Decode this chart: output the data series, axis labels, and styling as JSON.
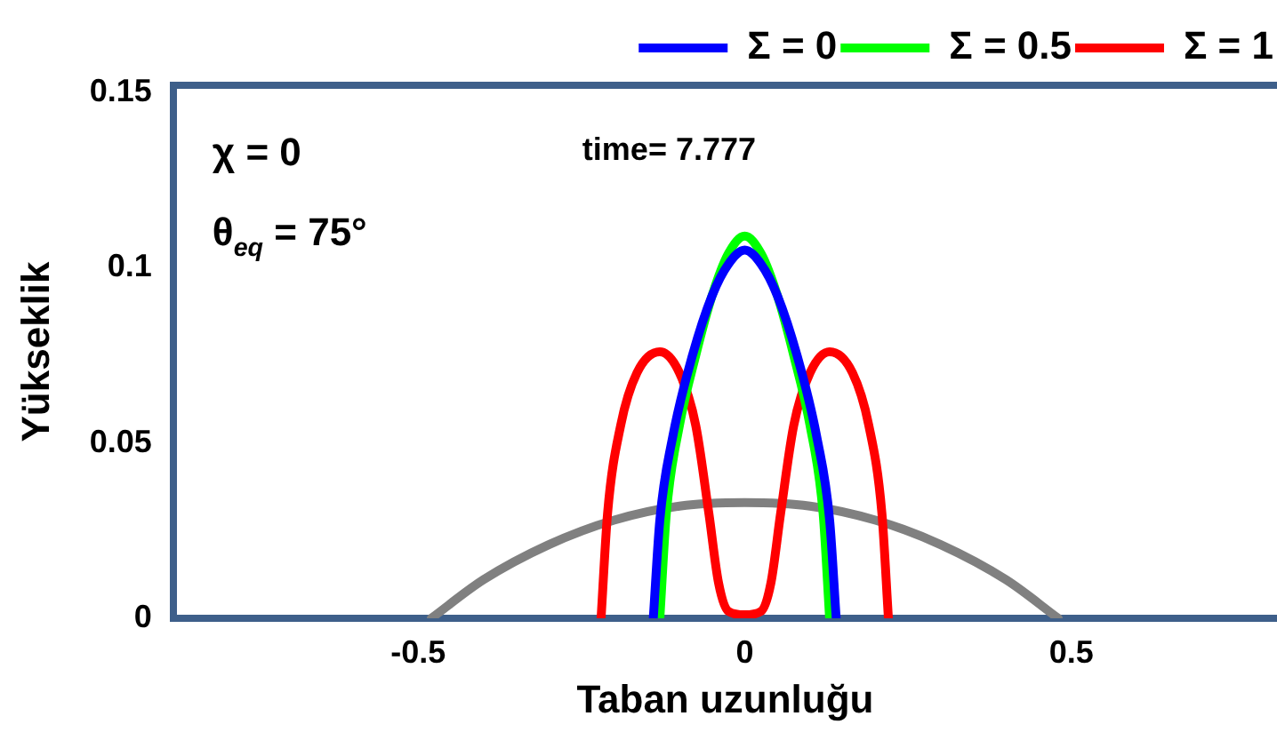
{
  "chart_data": {
    "type": "line",
    "xlabel": "Taban uzunluğu",
    "ylabel": "Yükseklik",
    "annotations": [
      "χ = 0",
      "θ$_{eq}$ = 75°",
      "time= 7.777"
    ],
    "xlim": [
      -0.875,
      0.815
    ],
    "ylim": [
      0,
      0.152
    ],
    "xticks": [
      -0.5,
      0,
      0.5
    ],
    "yticks": [
      0,
      0.05,
      0.1,
      0.15
    ],
    "grid": false,
    "legend": "top right",
    "marker": "none",
    "line_style": "solid",
    "series": [
      {
        "name": "Σ = 0",
        "color": "#0000ff",
        "x": [
          -0.14,
          -0.13,
          -0.11,
          -0.08,
          -0.05,
          -0.025,
          0,
          0.025,
          0.05,
          0.08,
          0.11,
          0.13,
          0.14
        ],
        "values": [
          0,
          0.028,
          0.052,
          0.075,
          0.092,
          0.101,
          0.105,
          0.101,
          0.092,
          0.075,
          0.052,
          0.028,
          0
        ]
      },
      {
        "name": "Σ = 0.5",
        "color": "#00ff00",
        "x": [
          -0.13,
          -0.12,
          -0.1,
          -0.075,
          -0.05,
          -0.025,
          0,
          0.025,
          0.05,
          0.075,
          0.1,
          0.12,
          0.13
        ],
        "values": [
          0,
          0.03,
          0.055,
          0.075,
          0.092,
          0.104,
          0.109,
          0.104,
          0.092,
          0.075,
          0.055,
          0.03,
          0
        ]
      },
      {
        "name": "Σ = 1",
        "color": "#ff0000",
        "x": [
          -0.22,
          -0.21,
          -0.19,
          -0.165,
          -0.13,
          -0.1,
          -0.075,
          -0.055,
          -0.04,
          -0.025,
          0,
          0.025,
          0.04,
          0.055,
          0.075,
          0.1,
          0.13,
          0.165,
          0.19,
          0.21,
          0.22
        ],
        "values": [
          0,
          0.03,
          0.055,
          0.07,
          0.076,
          0.07,
          0.055,
          0.03,
          0.01,
          0.002,
          0.001,
          0.002,
          0.01,
          0.03,
          0.055,
          0.07,
          0.076,
          0.07,
          0.055,
          0.03,
          0
        ]
      },
      {
        "color": "#808080",
        "x": [
          -0.48,
          -0.4,
          -0.3,
          -0.2,
          -0.1,
          0,
          0.1,
          0.2,
          0.3,
          0.4,
          0.48
        ],
        "values": [
          0,
          0.011,
          0.021,
          0.028,
          0.032,
          0.033,
          0.032,
          0.028,
          0.021,
          0.011,
          0
        ]
      }
    ]
  }
}
